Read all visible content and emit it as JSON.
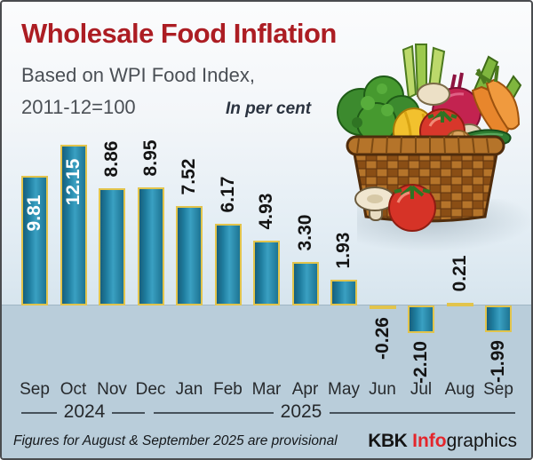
{
  "header": {
    "title": "Wholesale Food Inflation",
    "subtitle_line1": "Based on WPI Food Index,",
    "subtitle_line2": "2011-12=100",
    "unit_note": "In per cent"
  },
  "axis": {
    "year_2024": "2024",
    "year_2025": "2025"
  },
  "footer": {
    "note": "Figures for August & September 2025 are provisional",
    "credit_bold": "KBK",
    "credit_red": "Info",
    "credit_rest": "graphics"
  },
  "illustration": {
    "name": "vegetable-basket",
    "description": "wicker basket with broccoli, leek, mushrooms, beet, carrots, yellow pepper, tomatoes, cucumber and onion"
  },
  "chart_data": {
    "type": "bar",
    "title": "Wholesale Food Inflation",
    "subtitle": "Based on WPI Food Index, 2011-12=100",
    "ylabel": "In per cent",
    "categories": [
      "Sep",
      "Oct",
      "Nov",
      "Dec",
      "Jan",
      "Feb",
      "Mar",
      "Apr",
      "May",
      "Jun",
      "Jul",
      "Aug",
      "Sep"
    ],
    "values": [
      9.81,
      12.15,
      8.86,
      8.95,
      7.52,
      6.17,
      4.93,
      3.3,
      1.93,
      -0.26,
      -2.1,
      0.21,
      -1.99
    ],
    "value_labels": [
      "9.81",
      "12.15",
      "8.86",
      "8.95",
      "7.52",
      "6.17",
      "4.93",
      "3.30",
      "1.93",
      "-0.26",
      "-2.10",
      "0.21",
      "-1.99"
    ],
    "year_groups": [
      {
        "year": "2024",
        "months": [
          "Sep",
          "Oct",
          "Nov",
          "Dec"
        ]
      },
      {
        "year": "2025",
        "months": [
          "Jan",
          "Feb",
          "Mar",
          "Apr",
          "May",
          "Jun",
          "Jul",
          "Aug",
          "Sep"
        ]
      }
    ],
    "ylim": [
      -3,
      13
    ],
    "zero_line": true,
    "legend": "none",
    "grid": false,
    "colors": {
      "bar": "#1f7ea0",
      "bar_border": "#e2c44c",
      "positive_background": "#e3edf4",
      "negative_background": "#b9cdda",
      "title": "#ac1d23"
    }
  }
}
